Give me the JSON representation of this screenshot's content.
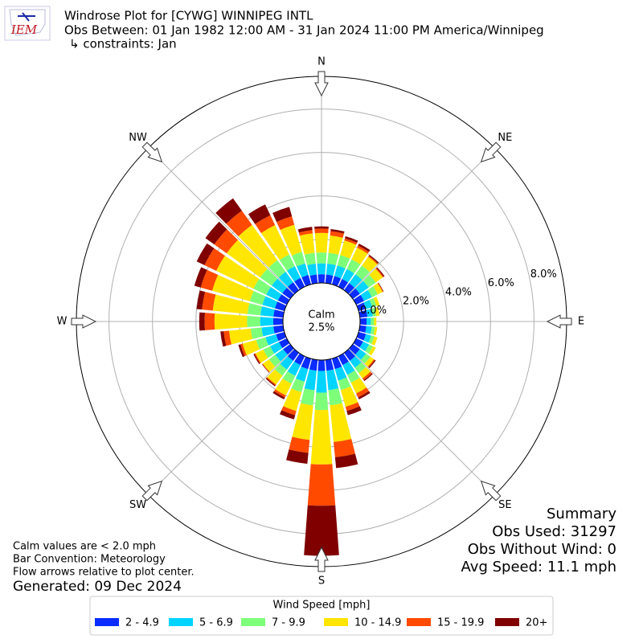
{
  "chart_data": {
    "type": "windrose",
    "logo_text": "IEM",
    "title": "Windrose Plot for [CYWG] WINNIPEG INTL",
    "subtitle": "Obs Between: 01 Jan 1982 12:00 AM - 31 Jan 2024 11:00 PM America/Winnipeg",
    "constraints": "↳ constraints: Jan",
    "x": [
      0,
      10,
      20,
      30,
      40,
      50,
      60,
      70,
      80,
      90,
      100,
      110,
      120,
      130,
      140,
      150,
      160,
      170,
      180,
      190,
      200,
      210,
      220,
      230,
      240,
      250,
      260,
      270,
      280,
      290,
      300,
      310,
      320,
      330,
      340,
      350
    ],
    "xticks": [
      {
        "value": 0,
        "label": "N"
      },
      {
        "value": 45,
        "label": "NE"
      },
      {
        "value": 90,
        "label": "E"
      },
      {
        "value": 135,
        "label": "SE"
      },
      {
        "value": 180,
        "label": "S"
      },
      {
        "value": 225,
        "label": "SW"
      },
      {
        "value": 270,
        "label": "W"
      },
      {
        "value": 315,
        "label": "NW"
      }
    ],
    "ylim": [
      0,
      9.5
    ],
    "yticks": [
      {
        "value": 0,
        "label": "0.0%"
      },
      {
        "value": 2,
        "label": "2.0%"
      },
      {
        "value": 4,
        "label": "4.0%"
      },
      {
        "value": 6,
        "label": "6.0%"
      },
      {
        "value": 8,
        "label": "8.0%"
      }
    ],
    "grid": true,
    "calm_label": "Calm",
    "calm_value": 2.5,
    "calm_value_label": "2.5%",
    "legend_title": "Wind Speed [mph]",
    "series": [
      {
        "name": "2 - 4.9",
        "color": "#0a2cff",
        "values": [
          0.4,
          0.4,
          0.4,
          0.4,
          0.4,
          0.4,
          0.4,
          0.35,
          0.35,
          0.3,
          0.3,
          0.35,
          0.35,
          0.4,
          0.45,
          0.45,
          0.5,
          0.5,
          0.5,
          0.5,
          0.5,
          0.45,
          0.45,
          0.4,
          0.4,
          0.4,
          0.45,
          0.45,
          0.45,
          0.45,
          0.45,
          0.45,
          0.45,
          0.45,
          0.45,
          0.4
        ]
      },
      {
        "name": "5 - 6.9",
        "color": "#00d4ff",
        "values": [
          0.5,
          0.5,
          0.5,
          0.5,
          0.5,
          0.5,
          0.4,
          0.3,
          0.25,
          0.2,
          0.25,
          0.25,
          0.3,
          0.35,
          0.4,
          0.5,
          0.55,
          0.9,
          1.0,
          0.9,
          0.6,
          0.55,
          0.5,
          0.45,
          0.45,
          0.5,
          0.55,
          0.6,
          0.6,
          0.6,
          0.6,
          0.6,
          0.6,
          0.6,
          0.55,
          0.5
        ]
      },
      {
        "name": "7 - 9.9",
        "color": "#7dff7a",
        "values": [
          0.5,
          0.5,
          0.5,
          0.5,
          0.5,
          0.4,
          0.3,
          0.2,
          0.15,
          0.15,
          0.15,
          0.15,
          0.2,
          0.25,
          0.3,
          0.4,
          0.45,
          0.7,
          0.8,
          0.7,
          0.5,
          0.4,
          0.35,
          0.35,
          0.35,
          0.45,
          0.5,
          0.6,
          0.6,
          0.6,
          0.65,
          0.65,
          0.65,
          0.6,
          0.55,
          0.5
        ]
      },
      {
        "name": "10 - 14.9",
        "color": "#ffe600",
        "values": [
          0.9,
          0.8,
          0.7,
          0.6,
          0.5,
          0.4,
          0.25,
          0.15,
          0.15,
          0.1,
          0.1,
          0.15,
          0.15,
          0.2,
          0.3,
          0.55,
          0.8,
          1.7,
          2.5,
          1.6,
          0.9,
          0.6,
          0.5,
          0.35,
          0.4,
          0.65,
          1.0,
          1.5,
          1.6,
          1.8,
          1.9,
          1.9,
          2.0,
          1.5,
          1.3,
          0.9
        ]
      },
      {
        "name": "15 - 19.9",
        "color": "#ff4a00",
        "values": [
          0.2,
          0.2,
          0.1,
          0.1,
          0.05,
          0.05,
          0.03,
          0,
          0,
          0,
          0,
          0,
          0,
          0.05,
          0.1,
          0.2,
          0.2,
          0.7,
          1.9,
          0.6,
          0.2,
          0.1,
          0.05,
          0.03,
          0.05,
          0.1,
          0.25,
          0.45,
          0.5,
          0.55,
          0.6,
          0.7,
          0.8,
          0.5,
          0.4,
          0.15
        ]
      },
      {
        "name": "20+",
        "color": "#800000",
        "values": [
          0.1,
          0.1,
          0.1,
          0.1,
          0.05,
          0.05,
          0.02,
          0,
          0,
          0,
          0,
          0,
          0,
          0.05,
          0.05,
          0.1,
          0.2,
          0.5,
          2.3,
          0.5,
          0.2,
          0.1,
          0.05,
          0.02,
          0.05,
          0.1,
          0.15,
          0.25,
          0.25,
          0.3,
          0.4,
          0.5,
          0.7,
          0.55,
          0.45,
          0.15
        ]
      }
    ],
    "notes": [
      "Calm values are < 2.0 mph",
      "Bar Convention: Meteorology",
      "Flow arrows relative to plot center."
    ],
    "generated": "Generated: 09 Dec 2024",
    "summary_title": "Summary",
    "summary_lines": [
      "Obs Used: 31297",
      "Obs Without Wind: 0",
      "Avg Speed: 11.1 mph"
    ]
  }
}
